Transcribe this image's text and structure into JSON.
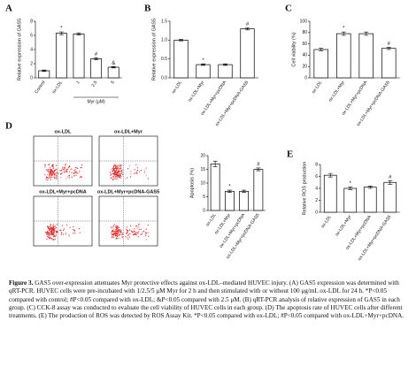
{
  "chart_data": [
    {
      "type": "bar",
      "panel": "A",
      "y_label": "Relative expression of GAS5",
      "categories": [
        "Control",
        "ox-LDL",
        "1",
        "2.5",
        "5"
      ],
      "values": [
        1.0,
        6.3,
        6.2,
        2.7,
        1.5
      ],
      "errors": [
        0.1,
        0.2,
        0.15,
        0.15,
        0.1
      ],
      "annotations": [
        null,
        "*",
        null,
        "#",
        "&"
      ],
      "group_label": "Myr (μM)",
      "group_span": [
        2,
        4
      ],
      "color": "#ffffff",
      "ylim": [
        0,
        8
      ],
      "yticks": [
        0,
        2,
        4,
        6,
        8
      ]
    },
    {
      "type": "bar",
      "panel": "B",
      "y_label": "Relative expression of GAS5",
      "categories": [
        "ox-LDL",
        "ox-LDL+Myr",
        "ox-LDL+Myr+pcDNA",
        "ox-LDL+Myr+pcDNA-GAS5"
      ],
      "values": [
        1.0,
        0.35,
        0.35,
        1.3
      ],
      "errors": [
        0.02,
        0.02,
        0.02,
        0.03
      ],
      "annotations": [
        null,
        "*",
        null,
        "#"
      ],
      "color": "#ffffff",
      "ylim": [
        0,
        1.5
      ],
      "yticks": [
        {
          "value": 0,
          "label": "0.0"
        },
        0.5,
        {
          "value": 1,
          "label": "1.0"
        },
        1.5
      ]
    },
    {
      "type": "bar",
      "panel": "C",
      "y_label": "Cell viability (%)",
      "categories": [
        "ox-LDL",
        "ox-LDL+Myr",
        "ox-LDL+Myr+pcDNA",
        "ox-LDL+Myr+pcDNA-GAS5"
      ],
      "values": [
        50,
        78,
        78,
        52
      ],
      "errors": [
        2,
        3,
        3,
        2
      ],
      "annotations": [
        null,
        "*",
        null,
        "#"
      ],
      "color": "#ffffff",
      "ylim": [
        0,
        100
      ],
      "yticks": [
        0,
        20,
        40,
        60,
        80,
        100
      ]
    },
    {
      "type": "bar",
      "y_label": "Apoptosis (%)",
      "categories": [
        "ox-LDL",
        "ox-LDL+Myr",
        "ox-LDL+Myr+pcDNA",
        "ox-LDL+Myr+pcDNA-GAS5"
      ],
      "values": [
        17,
        7,
        7,
        15
      ],
      "errors": [
        1,
        0.4,
        0.4,
        0.5
      ],
      "annotations": [
        null,
        "*",
        null,
        "#"
      ],
      "color": "#ffffff",
      "ylim": [
        0,
        20
      ],
      "yticks": [
        0,
        5,
        10,
        15,
        20
      ]
    },
    {
      "type": "bar",
      "panel": "E",
      "y_label": "Relative ROS production",
      "categories": [
        "ox-LDL",
        "ox-LDL+Myr",
        "ox-LDL+Myr+pcDNA",
        "ox-LDL+Myr+pcDNA-GAS5"
      ],
      "values": [
        6.2,
        4.0,
        4.2,
        5.0
      ],
      "errors": [
        0.3,
        0.2,
        0.2,
        0.3
      ],
      "annotations": [
        null,
        "*",
        null,
        "#"
      ],
      "color": "#ffffff",
      "ylim": [
        0,
        8
      ],
      "yticks": [
        0,
        2,
        4,
        6,
        8
      ]
    }
  ],
  "flow_panel": {
    "panel": "D",
    "titles": [
      "ox-LDL",
      "ox-LDL+Myr",
      "ox-LDL+Myr+pcDNA",
      "ox-LDL+Myr+pcDNA-GAS5"
    ]
  },
  "caption": {
    "label": "Figure 3.",
    "text": "GAS5 over-expression attenuates Myr protective effects against ox-LDL–mediated HUVEC injury. (A) GAS5 expression was determined with qRT-PCR. HUVEC cells were pre-incubated with 1/2.5/5 μM Myr for 2 h and then stimulated with or without 100 μg/mL ox-LDL for 24 h. *P<0.05 compared with control; #P<0.05 compared with ox-LDL; &P<0.05 compared with 2.5 μM. (B) qRT-PCR analysis of relative expression of GAS5 in each group. (C) CCK-8 assay was conducted to evaluate the cell viability of HUVEC cells in each group. (D) The apoptosis rate of HUVEC cells after different treatments. (E) The production of ROS was detected by ROS Assay Kit. *P<0.05 compared with ox-LDL; #P<0.05 compared with ox-LDL+Myr+pcDNA."
  }
}
